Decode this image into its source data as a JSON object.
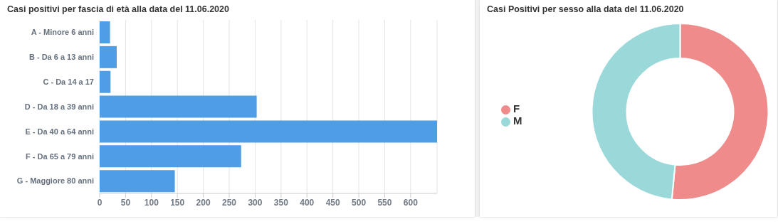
{
  "chart_data": [
    {
      "type": "bar",
      "orientation": "horizontal",
      "title": "Casi positivi per fascia di età alla data del 11.06.2020",
      "categories": [
        "A - Minore 6 anni",
        "B - Da 6 a 13 anni",
        "C - Da 14 a 17",
        "D - Da 18 a 39 anni",
        "E - Da 40 a 64 anni",
        "F - Da 65 a 79 anni",
        "G - Maggiore 80 anni"
      ],
      "values": [
        20,
        33,
        21,
        303,
        651,
        273,
        145
      ],
      "color": "#4f9de4",
      "xlim": [
        0,
        651
      ],
      "xticks": [
        0,
        50,
        100,
        150,
        200,
        250,
        300,
        350,
        400,
        450,
        500,
        550,
        600
      ],
      "grid": "x"
    },
    {
      "type": "donut",
      "title": "Casi Positivi per sesso alla data del 11.06.2020",
      "categories": [
        "F",
        "M"
      ],
      "values": [
        51.5,
        48.5
      ],
      "colors": [
        "#ef8b8a",
        "#9ad8da"
      ],
      "legend": "left"
    }
  ]
}
